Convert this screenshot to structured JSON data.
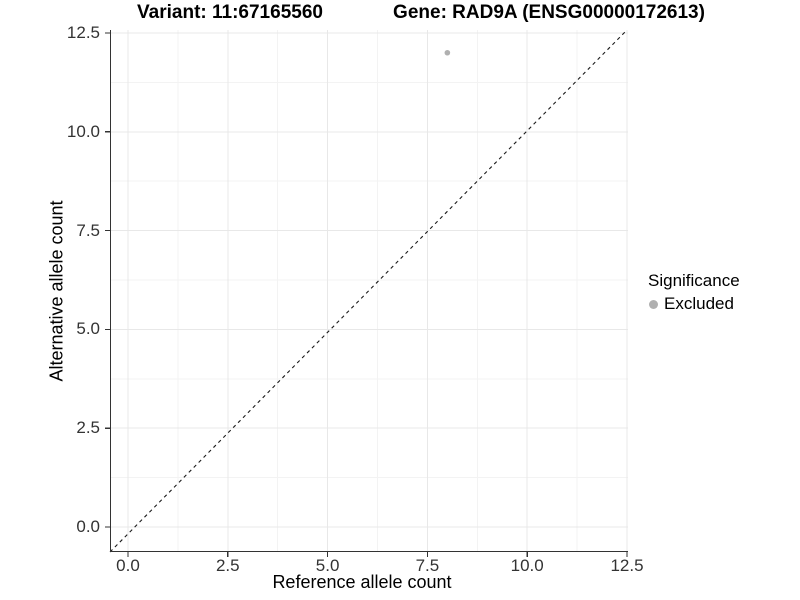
{
  "chart_data": {
    "type": "scatter",
    "titles": {
      "variant": "Variant: 11:67165560",
      "gene": "Gene: RAD9A (ENSG00000172613)"
    },
    "xlabel": "Reference allele count",
    "ylabel": "Alternative allele count",
    "xlim": [
      0,
      12.5
    ],
    "ylim": [
      0,
      12.5
    ],
    "x_major_ticks": [
      0,
      2.5,
      5,
      7.5,
      10,
      12.5
    ],
    "x_tick_labels": [
      "0.0",
      "2.5",
      "5.0",
      "7.5",
      "10.0",
      "12.5"
    ],
    "y_major_ticks": [
      0,
      2.5,
      5,
      7.5,
      10,
      12.5
    ],
    "y_tick_labels": [
      "0.0",
      "2.5",
      "5.0",
      "7.5",
      "10.0",
      "12.5"
    ],
    "x_minor_ticks": [
      1.25,
      3.75,
      6.25,
      8.75,
      11.25
    ],
    "y_minor_ticks": [
      1.25,
      3.75,
      6.25,
      8.75,
      11.25
    ],
    "grid": {
      "major": true,
      "minor": true
    },
    "reference_line": {
      "type": "identity",
      "slope": 1,
      "intercept": 0,
      "linetype": "dashed",
      "color": "#1a1a1a"
    },
    "series": [
      {
        "name": "Excluded",
        "color": "#b0b0b0",
        "points": [
          {
            "x": 8,
            "y": 12
          }
        ]
      }
    ],
    "legend": {
      "title": "Significance",
      "position": "right",
      "items": [
        {
          "label": "Excluded",
          "marker": "circle",
          "color": "#b0b0b0"
        }
      ]
    },
    "colors": {
      "background": "#ffffff",
      "grid_major": "#e8e8e8",
      "grid_minor": "#f3f3f3",
      "axis_line": "#333333",
      "tick_mark": "#333333",
      "tick_text": "#333333",
      "title_text": "#000000"
    }
  }
}
